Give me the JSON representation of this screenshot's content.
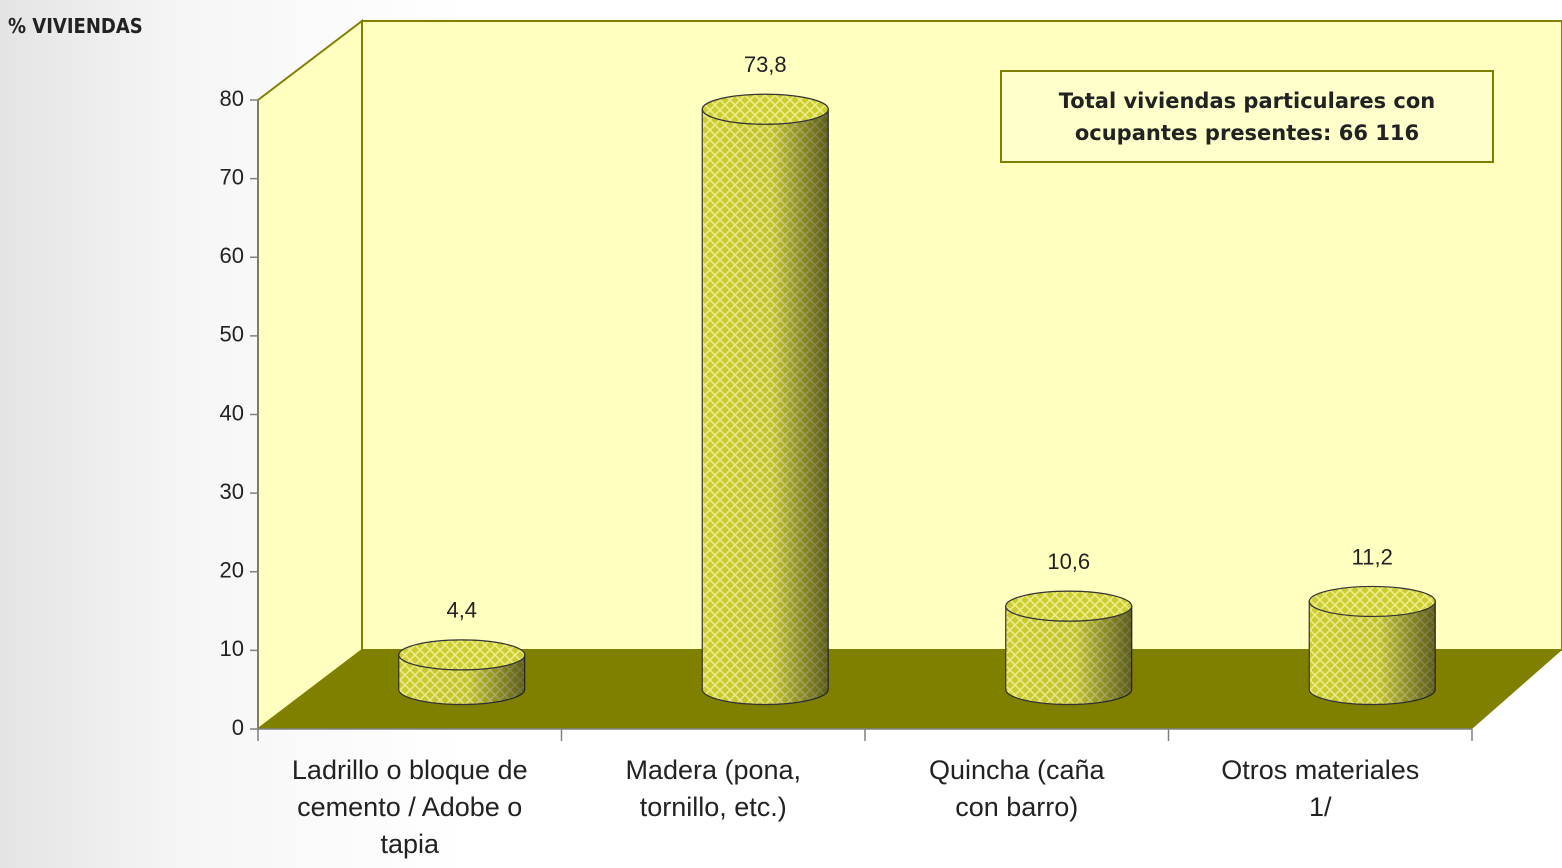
{
  "chart_data": {
    "type": "bar3d",
    "y_axis_label": "% VIVIENDAS",
    "annotation": "Total viviendas particulares con ocupantes presentes: 66 116",
    "categories": [
      "Ladrillo o bloque de cemento / Adobe o tapia",
      "Madera (pona, tornillo, etc.)",
      "Quincha (caña con barro)",
      "Otros materiales 1/"
    ],
    "values": [
      4.4,
      73.8,
      10.6,
      11.2
    ],
    "value_labels": [
      "4,4",
      "73,8",
      "10,6",
      "11,2"
    ],
    "color": "#cccc33",
    "ylim": [
      0,
      80
    ],
    "yticks": [
      0,
      10,
      20,
      30,
      40,
      50,
      60,
      70,
      80
    ]
  }
}
